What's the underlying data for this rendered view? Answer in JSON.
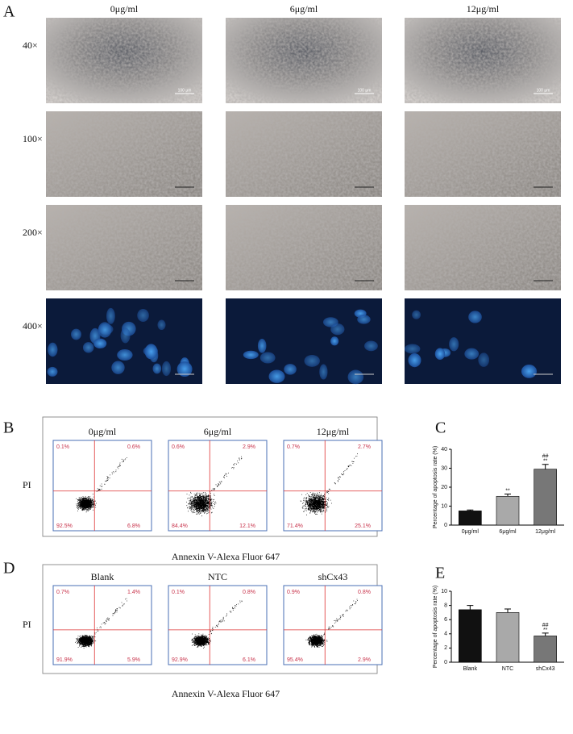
{
  "figure": {
    "panel_labels": [
      "A",
      "B",
      "C",
      "D",
      "E"
    ],
    "micrographs": {
      "columns": [
        "0μg/ml",
        "6μg/ml",
        "12μg/ml"
      ],
      "rows": [
        "40×",
        "100×",
        "200×",
        "400×"
      ],
      "scale_label": "100 μm"
    },
    "flow_b": {
      "y_label": "PI",
      "x_label": "Annexin V-Alexa Fluor 647",
      "plots": [
        {
          "title": "0μg/ml",
          "quadrants": [
            "0.1%",
            "0.6%",
            "92.5%",
            "6.8%"
          ]
        },
        {
          "title": "6μg/ml",
          "quadrants": [
            "0.6%",
            "2.9%",
            "84.4%",
            "12.1%"
          ]
        },
        {
          "title": "12μg/ml",
          "quadrants": [
            "0.7%",
            "2.7%",
            "71.4%",
            "25.1%"
          ]
        }
      ]
    },
    "flow_d": {
      "y_label": "PI",
      "x_label": "Annexin V-Alexa Fluor 647",
      "plots": [
        {
          "title": "Blank",
          "quadrants": [
            "0.7%",
            "1.4%",
            "91.9%",
            "5.9%"
          ]
        },
        {
          "title": "NTC",
          "quadrants": [
            "0.1%",
            "0.8%",
            "92.9%",
            "6.1%"
          ]
        },
        {
          "title": "shCx43",
          "quadrants": [
            "0.9%",
            "0.8%",
            "95.4%",
            "2.9%"
          ]
        }
      ]
    }
  },
  "chart_data": [
    {
      "type": "bar",
      "y_label": "Percentage of apoptosis rate (%)",
      "categories": [
        "0μg/ml",
        "6μg/ml",
        "12μg/ml"
      ],
      "values": [
        7.5,
        15.2,
        29.5
      ],
      "errors": [
        0.5,
        1.2,
        2.5
      ],
      "colors": [
        "#111111",
        "#a9a9a9",
        "#777777"
      ],
      "significance": [
        [],
        [
          "**"
        ],
        [
          "##",
          "**"
        ]
      ],
      "ylim": [
        0,
        40
      ],
      "yticks": [
        0,
        10,
        20,
        30,
        40
      ]
    },
    {
      "type": "bar",
      "y_label": "Percentage of apoptosis rate (%)",
      "categories": [
        "Blank",
        "NTC",
        "shCx43"
      ],
      "values": [
        7.4,
        7.0,
        3.7
      ],
      "errors": [
        0.6,
        0.5,
        0.4
      ],
      "colors": [
        "#111111",
        "#a9a9a9",
        "#777777"
      ],
      "significance": [
        [],
        [],
        [
          "##",
          "**"
        ]
      ],
      "ylim": [
        0,
        10
      ],
      "yticks": [
        0,
        2,
        4,
        6,
        8,
        10
      ]
    }
  ]
}
